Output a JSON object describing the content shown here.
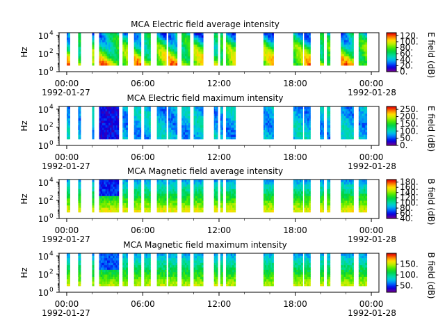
{
  "chart_data": [
    {
      "type": "heatmap",
      "title": "MCA  Electric field average intensity",
      "ylabel": "Hz",
      "x_tick_labels": [
        "00:00",
        "06:00",
        "12:00",
        "18:00",
        "00:00"
      ],
      "x_date_labels": [
        "1992-01-27",
        "1992-01-28"
      ],
      "y_tick_labels": [
        "10",
        "10",
        "10"
      ],
      "y_tick_exponents": [
        "0",
        "2",
        "4"
      ],
      "ylim": [
        1,
        20000
      ],
      "y_scale": "log",
      "colorbar_label": "E field (dB)",
      "colorbar_ticks": [
        "0.",
        "20.",
        "40.",
        "60.",
        "80.",
        "100.",
        "120."
      ],
      "colorbar_range": [
        0,
        130
      ],
      "colormap": "spectral-rainbow"
    },
    {
      "type": "heatmap",
      "title": "MCA  Electric field maximum intensity",
      "ylabel": "Hz",
      "x_tick_labels": [
        "00:00",
        "06:00",
        "12:00",
        "18:00",
        "00:00"
      ],
      "x_date_labels": [
        "1992-01-27",
        "1992-01-28"
      ],
      "y_tick_labels": [
        "10",
        "10",
        "10"
      ],
      "y_tick_exponents": [
        "0",
        "2",
        "4"
      ],
      "ylim": [
        1,
        20000
      ],
      "y_scale": "log",
      "colorbar_label": "E field (dB)",
      "colorbar_ticks": [
        "0.",
        "50.",
        "100.",
        "150.",
        "200.",
        "250."
      ],
      "colorbar_range": [
        0,
        270
      ],
      "colormap": "spectral-rainbow"
    },
    {
      "type": "heatmap",
      "title": "MCA  Magnetic field average intensity",
      "ylabel": "Hz",
      "x_tick_labels": [
        "00:00",
        "06:00",
        "12:00",
        "18:00",
        "00:00"
      ],
      "x_date_labels": [
        "1992-01-27",
        "1992-01-28"
      ],
      "y_tick_labels": [
        "10",
        "10",
        "10"
      ],
      "y_tick_exponents": [
        "0",
        "2",
        "4"
      ],
      "ylim": [
        1,
        20000
      ],
      "y_scale": "log",
      "colorbar_label": "B field (dB)",
      "colorbar_ticks": [
        "40.",
        "60.",
        "80.",
        "100.",
        "120.",
        "140.",
        "160.",
        "180."
      ],
      "colorbar_range": [
        40,
        190
      ],
      "colormap": "spectral-rainbow"
    },
    {
      "type": "heatmap",
      "title": "MCA  Magnetic field maximum intensity",
      "ylabel": "Hz",
      "x_tick_labels": [
        "00:00",
        "06:00",
        "12:00",
        "18:00",
        "00:00"
      ],
      "x_date_labels": [
        "1992-01-27",
        "1992-01-28"
      ],
      "y_tick_labels": [
        "10",
        "10",
        "10"
      ],
      "y_tick_exponents": [
        "0",
        "2",
        "4"
      ],
      "ylim": [
        1,
        20000
      ],
      "y_scale": "log",
      "colorbar_label": "B field (dB)",
      "colorbar_ticks": [
        "50.",
        "100.",
        "150."
      ],
      "colorbar_range": [
        20,
        200
      ],
      "colormap": "spectral-rainbow"
    }
  ]
}
